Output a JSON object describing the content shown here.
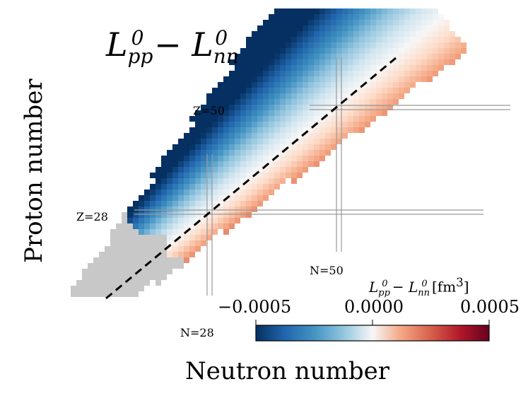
{
  "chart_data": {
    "type": "heatmap",
    "title": "L_pp^0 − L_nn^0",
    "title_parts": {
      "base1": "L",
      "sub1": "pp",
      "sup1": "0",
      "minus": "−",
      "base2": "L",
      "sub2": "nn",
      "sup2": "0"
    },
    "xlabel": "Neutron number",
    "ylabel": "Proton number",
    "colorbar": {
      "label_parts": {
        "base1": "L",
        "sub1": "pp",
        "sup1": "0",
        "minus": "−",
        "base2": "L",
        "sub2": "nn",
        "sup2": "0",
        "unit": "[fm",
        "unit_sup": "3",
        "unit_close": "]"
      },
      "ticks": [
        "−0.0005",
        "0.0000",
        "0.0005"
      ],
      "tick_values": [
        -0.0005,
        0.0,
        0.0005
      ],
      "range": [
        -0.0005,
        0.0005
      ],
      "colormap": "RdBu_r"
    },
    "magic_lines": [
      {
        "label": "Z=28",
        "value": 28,
        "axis": "proton"
      },
      {
        "label": "Z=50",
        "value": 50,
        "axis": "proton"
      },
      {
        "label": "N=28",
        "value": 28,
        "axis": "neutron"
      },
      {
        "label": "N=50",
        "value": 50,
        "axis": "neutron"
      }
    ],
    "grey_region": "nuclei below Z=28 / N=28 (not computed)",
    "dashed_line": "N = Z",
    "colors": {
      "grey": "#c8c8c8",
      "neg": "#08306b",
      "pos": "#67001f",
      "mid": "#f7f7f7",
      "magic": "#999999"
    }
  }
}
